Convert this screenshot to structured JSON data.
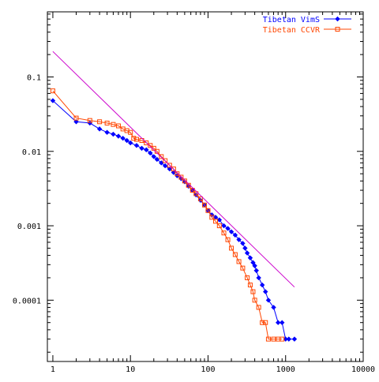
{
  "chart_data": {
    "type": "line",
    "title": "",
    "xlabel": "",
    "ylabel": "",
    "x_scale": "log",
    "y_scale": "log",
    "xlim": [
      0.85,
      10000
    ],
    "ylim": [
      1.5e-05,
      0.75
    ],
    "x_ticks": [
      {
        "value": 1,
        "label": "1"
      },
      {
        "value": 10,
        "label": "10"
      },
      {
        "value": 100,
        "label": "100"
      },
      {
        "value": 1000,
        "label": "1000"
      },
      {
        "value": 10000,
        "label": "10000"
      }
    ],
    "y_ticks": [
      {
        "value": 0.1,
        "label": "0.1"
      },
      {
        "value": 0.01,
        "label": "0.01"
      },
      {
        "value": 0.001,
        "label": "0.001"
      },
      {
        "value": 0.0001,
        "label": "0.0001"
      }
    ],
    "grid": false,
    "legend_position": "top-right",
    "series": [
      {
        "name": "Tibetan VimS",
        "color": "#0000ff",
        "marker": "diamond",
        "x": [
          1,
          2,
          3,
          4,
          5,
          6,
          7,
          8,
          9,
          10,
          12,
          14,
          16,
          18,
          20,
          22,
          25,
          28,
          32,
          36,
          40,
          45,
          50,
          56,
          63,
          70,
          80,
          90,
          100,
          112,
          125,
          140,
          160,
          180,
          200,
          224,
          250,
          280,
          300,
          320,
          350,
          380,
          400,
          420,
          450,
          500,
          550,
          600,
          700,
          800,
          900,
          1000,
          1100,
          1300
        ],
        "y": [
          0.048,
          0.025,
          0.024,
          0.02,
          0.018,
          0.017,
          0.016,
          0.015,
          0.014,
          0.013,
          0.012,
          0.011,
          0.0105,
          0.0095,
          0.0085,
          0.0078,
          0.007,
          0.0064,
          0.0058,
          0.0052,
          0.0047,
          0.0043,
          0.0039,
          0.0034,
          0.003,
          0.0026,
          0.0022,
          0.0019,
          0.0016,
          0.0014,
          0.0013,
          0.0012,
          0.001,
          0.00092,
          0.00083,
          0.00075,
          0.00065,
          0.00058,
          0.0005,
          0.00043,
          0.00037,
          0.00032,
          0.00029,
          0.00025,
          0.0002,
          0.00016,
          0.00013,
          0.0001,
          8e-05,
          5e-05,
          5e-05,
          3e-05,
          3e-05,
          3e-05
        ]
      },
      {
        "name": "Tibetan CCVR",
        "color": "#ff4500",
        "marker": "square",
        "x": [
          1,
          2,
          3,
          4,
          5,
          6,
          7,
          8,
          9,
          10,
          11,
          12,
          14,
          16,
          18,
          20,
          22,
          25,
          28,
          32,
          36,
          40,
          45,
          50,
          56,
          63,
          70,
          80,
          90,
          100,
          112,
          125,
          140,
          160,
          180,
          200,
          224,
          250,
          280,
          320,
          350,
          380,
          400,
          450,
          500,
          550,
          600,
          700,
          800,
          900
        ],
        "y": [
          0.065,
          0.028,
          0.026,
          0.025,
          0.024,
          0.023,
          0.022,
          0.02,
          0.019,
          0.018,
          0.015,
          0.0145,
          0.014,
          0.013,
          0.012,
          0.011,
          0.01,
          0.0085,
          0.0075,
          0.0065,
          0.0058,
          0.005,
          0.0045,
          0.004,
          0.0035,
          0.003,
          0.0027,
          0.0023,
          0.0019,
          0.0016,
          0.0013,
          0.00115,
          0.001,
          0.0008,
          0.00065,
          0.0005,
          0.00041,
          0.00033,
          0.00027,
          0.0002,
          0.00016,
          0.00013,
          0.0001,
          8e-05,
          5e-05,
          5e-05,
          3e-05,
          3e-05,
          3e-05,
          3e-05
        ]
      },
      {
        "name": "",
        "color": "#cc00cc",
        "marker": "none",
        "x": [
          1,
          1300
        ],
        "y": [
          0.22,
          0.00015
        ]
      }
    ]
  }
}
